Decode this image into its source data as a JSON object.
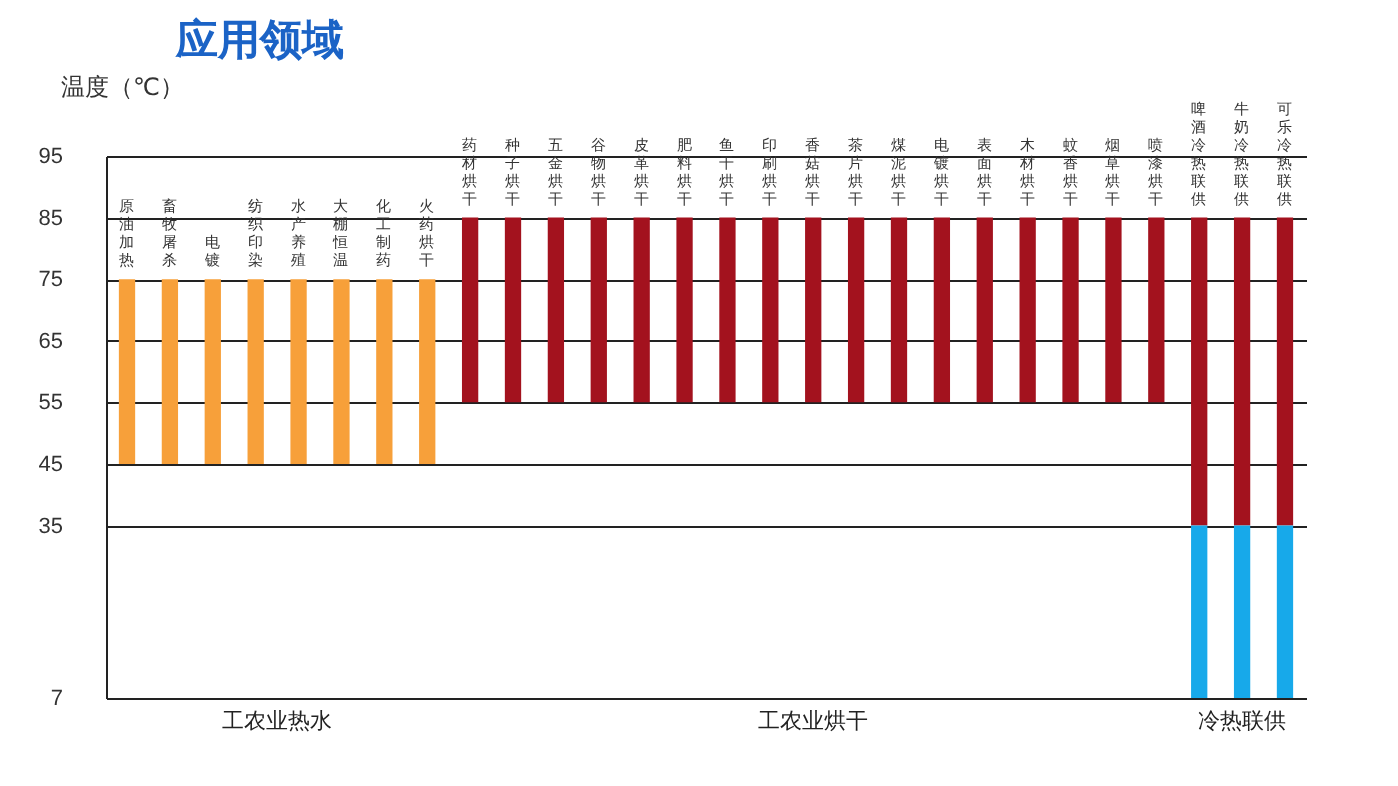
{
  "chart_data": {
    "type": "bar",
    "title": "应用领域",
    "ylabel": "温度（℃）",
    "categories": [
      "原油加热",
      "畜牧屠杀",
      "电镀",
      "纺织印染",
      "水产养殖",
      "大棚恒温",
      "化工制药",
      "火药烘干",
      "药材烘干",
      "种子烘干",
      "五金烘干",
      "谷物烘干",
      "皮革烘干",
      "肥料烘干",
      "鱼干烘干",
      "印刷烘干",
      "香菇烘干",
      "茶片烘干",
      "煤泥烘干",
      "电镀烘干",
      "表面烘干",
      "木材烘干",
      "蚊香烘干",
      "烟草烘干",
      "喷漆烘干",
      "啤酒冷热联供",
      "牛奶冷热联供",
      "可乐冷热联供"
    ],
    "series": [
      {
        "color": "#f7a03a",
        "base": [
          45,
          45,
          45,
          45,
          45,
          45,
          45,
          45,
          null,
          null,
          null,
          null,
          null,
          null,
          null,
          null,
          null,
          null,
          null,
          null,
          null,
          null,
          null,
          null,
          null,
          null,
          null,
          null
        ],
        "values": [
          30,
          30,
          30,
          30,
          30,
          30,
          30,
          30,
          null,
          null,
          null,
          null,
          null,
          null,
          null,
          null,
          null,
          null,
          null,
          null,
          null,
          null,
          null,
          null,
          null,
          null,
          null,
          null
        ]
      },
      {
        "color": "#a3121e",
        "base": [
          null,
          null,
          null,
          null,
          null,
          null,
          null,
          null,
          55,
          55,
          55,
          55,
          55,
          55,
          55,
          55,
          55,
          55,
          55,
          55,
          55,
          55,
          55,
          55,
          55,
          35,
          35,
          35
        ],
        "values": [
          null,
          null,
          null,
          null,
          null,
          null,
          null,
          null,
          30,
          30,
          30,
          30,
          30,
          30,
          30,
          30,
          30,
          30,
          30,
          30,
          30,
          30,
          30,
          30,
          30,
          50,
          50,
          50
        ]
      },
      {
        "color": "#17a9ea",
        "base": [
          null,
          null,
          null,
          null,
          null,
          null,
          null,
          null,
          null,
          null,
          null,
          null,
          null,
          null,
          null,
          null,
          null,
          null,
          null,
          null,
          null,
          null,
          null,
          null,
          null,
          7,
          7,
          7
        ],
        "values": [
          null,
          null,
          null,
          null,
          null,
          null,
          null,
          null,
          null,
          null,
          null,
          null,
          null,
          null,
          null,
          null,
          null,
          null,
          null,
          null,
          null,
          null,
          null,
          null,
          null,
          28,
          28,
          28
        ]
      }
    ],
    "annotations": [
      "工农业热水",
      "工农业烘干",
      "冷热联供"
    ],
    "ylim": [
      7,
      95
    ],
    "yticks": [
      7,
      35,
      45,
      55,
      65,
      75,
      85,
      95
    ],
    "grid": "y"
  }
}
